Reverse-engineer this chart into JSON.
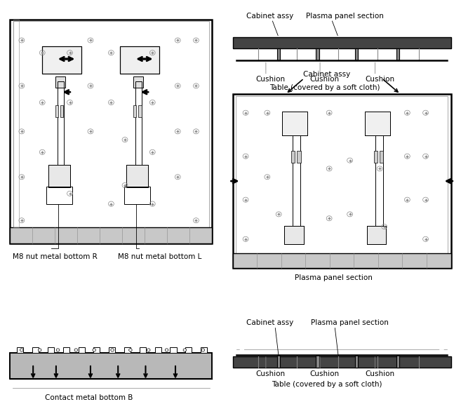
{
  "bg_color": "#ffffff",
  "line_color": "#000000",
  "gray_color": "#888888",
  "light_gray": "#cccccc",
  "dark_gray": "#444444",
  "font_size_label": 7.5,
  "font_size_small": 6.5,
  "label_m8r": "M8 nut metal bottom R",
  "label_m8l": "M8 nut metal bottom L",
  "label_contact": "Contact metal bottom B",
  "label_cabinet": "Cabinet assy",
  "label_plasma": "Plasma panel section",
  "label_cushion": "Cushion",
  "label_table": "Table (covered by a soft cloth)"
}
